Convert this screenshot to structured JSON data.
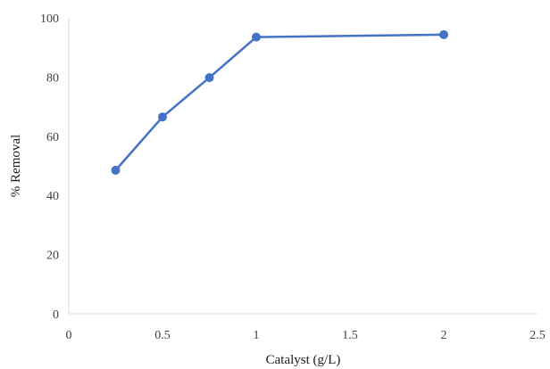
{
  "chart_data": {
    "type": "line",
    "xlabel": "Catalyst (g/L)",
    "ylabel": "% Removal",
    "xlim": [
      0,
      2.5
    ],
    "ylim": [
      0,
      100
    ],
    "x_ticks": [
      "0",
      "0.5",
      "1",
      "1.5",
      "2",
      "2.5"
    ],
    "y_ticks": [
      "0",
      "20",
      "40",
      "60",
      "80",
      "100"
    ],
    "grid": false,
    "legend": "none",
    "series": [
      {
        "color": "#4472C4",
        "x": [
          0.25,
          0.5,
          0.75,
          1,
          2
        ],
        "y": [
          48.5,
          66.5,
          79.8,
          93.5,
          94.3
        ]
      }
    ]
  }
}
